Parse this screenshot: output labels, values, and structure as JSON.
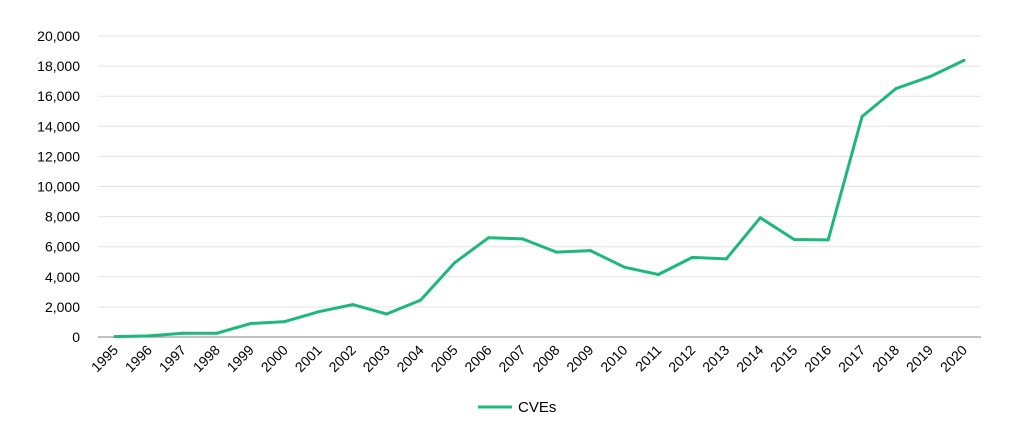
{
  "chart_data": {
    "type": "line",
    "title": "",
    "xlabel": "",
    "ylabel": "",
    "x": [
      "1995",
      "1996",
      "1997",
      "1998",
      "1999",
      "2000",
      "2001",
      "2002",
      "2003",
      "2004",
      "2005",
      "2006",
      "2007",
      "2008",
      "2009",
      "2010",
      "2011",
      "2012",
      "2013",
      "2014",
      "2015",
      "2016",
      "2017",
      "2018",
      "2019",
      "2020"
    ],
    "series": [
      {
        "name": "CVEs",
        "color": "#1db87a",
        "values": [
          25,
          75,
          250,
          250,
          900,
          1020,
          1680,
          2150,
          1530,
          2450,
          4930,
          6600,
          6520,
          5640,
          5740,
          4640,
          4150,
          5290,
          5190,
          7930,
          6480,
          6450,
          14650,
          16510,
          17300,
          18380
        ]
      }
    ],
    "ylim": [
      0,
      20000
    ],
    "yticks": [
      "0",
      "2,000",
      "4,000",
      "6,000",
      "8,000",
      "10,000",
      "12,000",
      "14,000",
      "16,000",
      "18,000",
      "20,000"
    ],
    "grid": "horizontal",
    "legend": "bottom-center"
  }
}
